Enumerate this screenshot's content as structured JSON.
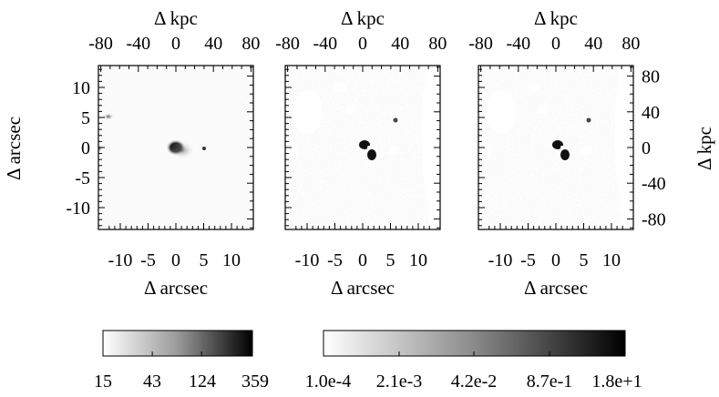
{
  "panels": [
    {
      "id": "image"
    },
    {
      "id": "residual-1"
    },
    {
      "id": "residual-2"
    }
  ],
  "axes": {
    "top_label": "Δ kpc",
    "top_ticks": [
      "-80",
      "-40",
      "0",
      "40",
      "80"
    ],
    "right_label": "Δ kpc",
    "right_ticks": [
      "80",
      "40",
      "0",
      "-40",
      "-80"
    ],
    "bottom_label": "Δ arcsec",
    "bottom_ticks": [
      "-10",
      "-5",
      "0",
      "5",
      "10"
    ],
    "left_label": "Δ arcsec",
    "left_ticks": [
      "10",
      "5",
      "0",
      "-5",
      "-10"
    ]
  },
  "colorbars": [
    {
      "id": "image-scale",
      "ticks": [
        "15",
        "43",
        "124",
        "359"
      ]
    },
    {
      "id": "residual-scale",
      "ticks": [
        "1.0e-4",
        "2.1e-3",
        "4.2e-2",
        "8.7e-1",
        "1.8e+1"
      ]
    }
  ]
}
